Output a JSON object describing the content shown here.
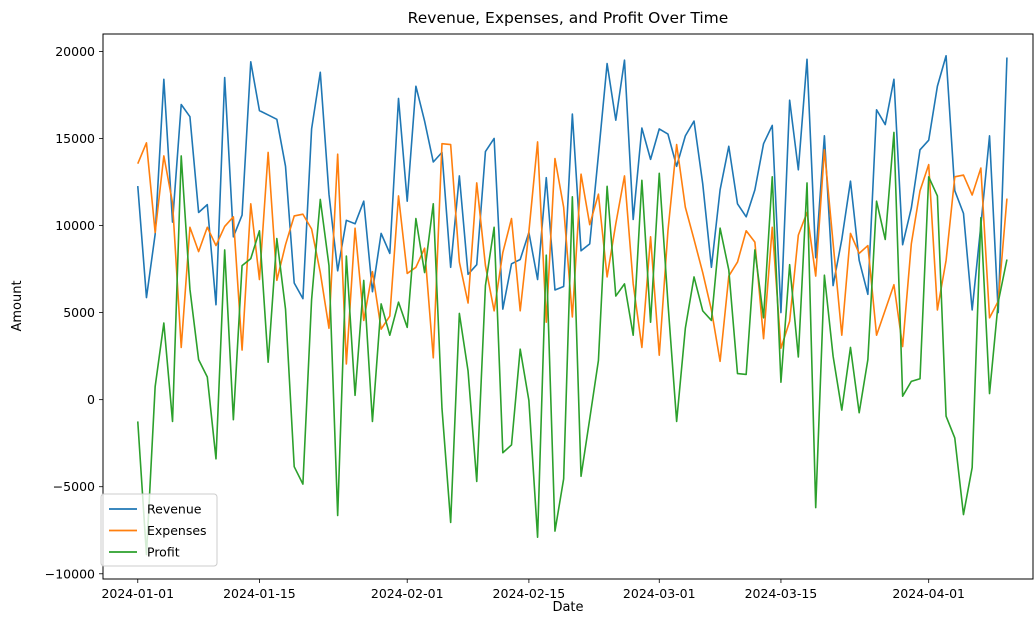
{
  "chart_data": {
    "type": "line",
    "title": "Revenue, Expenses, and Profit Over Time",
    "xlabel": "Date",
    "ylabel": "Amount",
    "x_start": "2024-01-01",
    "x_end": "2024-04-09",
    "xlim": [
      "2023-12-28",
      "2024-04-13"
    ],
    "ylim": [
      -10300,
      21000
    ],
    "x_ticks": [
      "2024-01-01",
      "2024-01-15",
      "2024-02-01",
      "2024-02-15",
      "2024-03-01",
      "2024-03-15",
      "2024-04-01"
    ],
    "y_ticks": [
      -10000,
      -5000,
      0,
      5000,
      10000,
      15000,
      20000
    ],
    "y_tick_labels": [
      "−10000",
      "−5000",
      "0",
      "5000",
      "10000",
      "15000",
      "20000"
    ],
    "grid": false,
    "legend_position": "lower-left",
    "series": [
      {
        "name": "Revenue",
        "color": "#1f77b4",
        "values": [
          12270,
          5860,
          9500,
          18400,
          10200,
          16950,
          16250,
          10750,
          11200,
          5450,
          18500,
          9350,
          10600,
          19400,
          16600,
          16350,
          16100,
          13400,
          6700,
          5800,
          15550,
          18800,
          11800,
          7400,
          10300,
          10100,
          11400,
          6200,
          9550,
          8400,
          17300,
          11400,
          18000,
          16000,
          13650,
          14200,
          7600,
          12850,
          7200,
          7750,
          14250,
          15000,
          5200,
          7800,
          8050,
          9600,
          6900,
          12750,
          6300,
          6500,
          16400,
          8550,
          8950,
          14050,
          19300,
          16050,
          19500,
          10350,
          15600,
          13800,
          15550,
          15250,
          13400,
          15150,
          16000,
          12400,
          7600,
          12050,
          14550,
          11250,
          10500,
          12050,
          14700,
          15750,
          5000,
          17200,
          13200,
          19550,
          8150,
          15150,
          6550,
          9200,
          12550,
          8000,
          6050,
          16650,
          15800,
          18400,
          8900,
          11000,
          14350,
          14900,
          18000,
          19750,
          12000,
          10700,
          5150,
          10000,
          15150,
          5000,
          19650
        ]
      },
      {
        "name": "Expenses",
        "color": "#ff7f0e",
        "values": [
          13550,
          14750,
          9600,
          14000,
          11300,
          3000,
          9900,
          8500,
          9900,
          8850,
          9950,
          10500,
          2850,
          11250,
          6900,
          14200,
          6850,
          8900,
          10550,
          10650,
          9800,
          7300,
          4100,
          14100,
          2050,
          9850,
          4550,
          7350,
          4050,
          4800,
          11700,
          7250,
          7600,
          8700,
          2400,
          14700,
          14650,
          7900,
          5550,
          12450,
          7700,
          5100,
          8450,
          10400,
          5100,
          9650,
          14800,
          4450,
          13850,
          11050,
          4750,
          12950,
          10050,
          11800,
          7050,
          10100,
          12850,
          6650,
          3000,
          9350,
          2550,
          9700,
          14650,
          11050,
          9200,
          7300,
          5150,
          2200,
          7100,
          7900,
          9700,
          9050,
          3500,
          9900,
          2950,
          4500,
          9450,
          10750,
          7100,
          14350,
          9000,
          3700,
          9550,
          8400,
          8850,
          3700,
          5150,
          6600,
          3050,
          8950,
          12000,
          13500,
          5150,
          8000,
          12800,
          12900,
          11750,
          13300,
          4700,
          5650,
          11550
        ]
      },
      {
        "name": "Profit",
        "color": "#2ca02c",
        "values": [
          -1250,
          -8900,
          750,
          4400,
          -1250,
          14000,
          6350,
          2300,
          1300,
          -3400,
          8600,
          -1150,
          7700,
          8100,
          9700,
          2150,
          9250,
          5200,
          -3850,
          -4850,
          5750,
          11500,
          7700,
          -6650,
          8250,
          250,
          6850,
          -1250,
          5500,
          3700,
          5600,
          4150,
          10400,
          7300,
          11250,
          -500,
          -7050,
          4950,
          1650,
          -4700,
          6550,
          9900,
          -3050,
          -2600,
          2900,
          -50,
          -7900,
          8300,
          -7550,
          -4550,
          11650,
          -4400,
          -1100,
          2250,
          12250,
          5950,
          6650,
          3700,
          12600,
          4450,
          13000,
          5550,
          -1250,
          4100,
          7050,
          5100,
          4550,
          9850,
          7450,
          1500,
          1450,
          8600,
          4700,
          12800,
          1000,
          7750,
          2450,
          12450,
          -6200,
          7150,
          2500,
          -600,
          3000,
          -750,
          2300,
          11400,
          9200,
          15350,
          200,
          1050,
          1200,
          12800,
          11700,
          -950,
          -2200,
          -6600,
          -3900,
          10450,
          350,
          5600,
          8050
        ]
      }
    ]
  }
}
